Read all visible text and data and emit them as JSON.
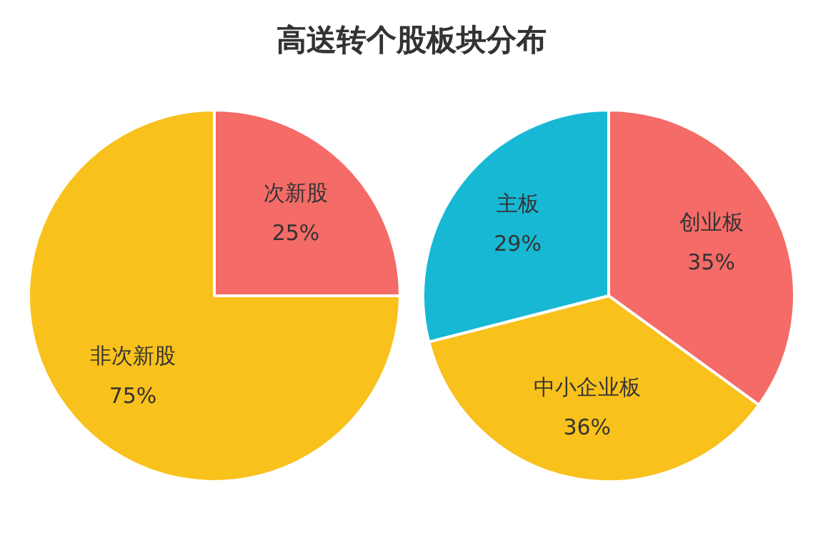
{
  "chart_data": [
    {
      "type": "pie",
      "title": "高送转个股板块分布",
      "categories": [
        "次新股",
        "非次新股"
      ],
      "values": [
        25,
        75
      ],
      "colors": [
        "#f46b67",
        "#f8c11b"
      ],
      "value_labels": [
        "25%",
        "75%"
      ]
    },
    {
      "type": "pie",
      "categories": [
        "创业板",
        "中小企业板",
        "主板"
      ],
      "values": [
        35,
        36,
        29
      ],
      "colors": [
        "#f46b67",
        "#f8c11b",
        "#17b8d4"
      ],
      "value_labels": [
        "35%",
        "36%",
        "29%"
      ]
    }
  ]
}
